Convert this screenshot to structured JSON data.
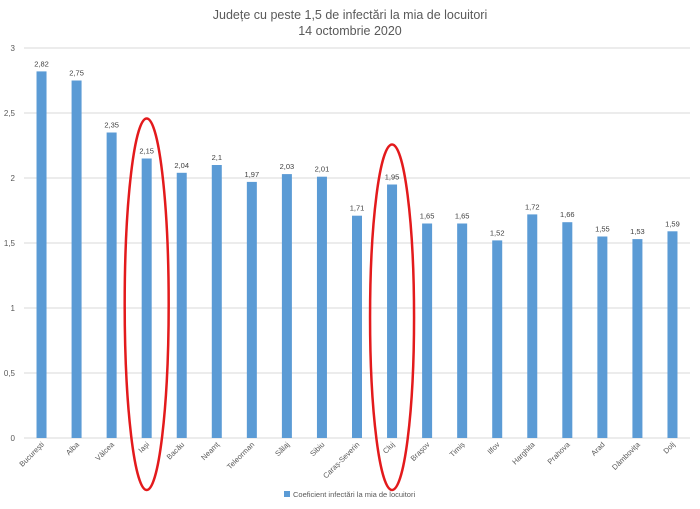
{
  "chart_data": {
    "type": "bar",
    "title": "Județe cu peste 1,5 de infectări la mia de locuitori",
    "subtitle": "14 octombrie 2020",
    "xlabel": "",
    "ylabel": "",
    "ylim": [
      0,
      3
    ],
    "yticks": [
      "0",
      "0,5",
      "1",
      "1,5",
      "2",
      "2,5",
      "3"
    ],
    "grid": true,
    "legend_position": "bottom",
    "series": [
      {
        "name": "Coeficient infectări la mia de locuitori",
        "color": "#5b9bd5",
        "values": [
          2.82,
          2.75,
          2.35,
          2.15,
          2.04,
          2.1,
          1.97,
          2.03,
          2.01,
          1.71,
          1.95,
          1.65,
          1.65,
          1.52,
          1.72,
          1.66,
          1.55,
          1.53,
          1.59
        ],
        "value_labels": [
          "2,82",
          "2,75",
          "2,35",
          "2,15",
          "2,04",
          "2,1",
          "1,97",
          "2,03",
          "2,01",
          "1,71",
          "1,95",
          "1,65",
          "1,65",
          "1,52",
          "1,72",
          "1,66",
          "1,55",
          "1,53",
          "1,59"
        ]
      }
    ],
    "categories": [
      "București",
      "Alba",
      "Vâlcea",
      "Iași",
      "Bacău",
      "Neamț",
      "Teleorman",
      "Sălaj",
      "Sibiu",
      "Caraș-Severin",
      "Cluj",
      "Brașov",
      "Timiș",
      "Ilfov",
      "Harghita",
      "Prahova",
      "Arad",
      "Dâmbovița",
      "Dolj"
    ],
    "annotations": [
      {
        "type": "ellipse",
        "category": "Iași",
        "color": "#e31a1c"
      },
      {
        "type": "ellipse",
        "category": "Cluj",
        "color": "#e31a1c"
      }
    ]
  }
}
